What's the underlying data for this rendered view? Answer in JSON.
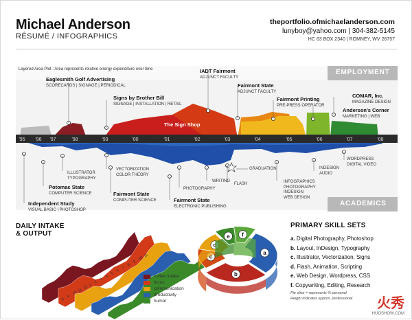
{
  "header": {
    "name": "Michael Anderson",
    "subtitle": "RÉSUMÉ / INFOGRAPHICS",
    "url": "theportfolio.ofmichaelanderson.com",
    "email_phone": "lunyboy@yahoo.com | 304-382-5145",
    "address": "HC 63 BOX 2340 | ROMNEY, WV 26757"
  },
  "timeline": {
    "note": "Layered Area Plot : Area represents relative energy expenditure over time",
    "employment_label": "EMPLOYMENT",
    "academics_label": "ACADEMICS",
    "years": [
      "'95",
      "'96",
      "'97",
      "'98",
      "'99",
      "'00",
      "'01",
      "'02",
      "'03",
      "'04",
      "'05",
      "'06",
      "'07",
      "'08"
    ],
    "center_label": "The Sign Shop",
    "employment": [
      {
        "title": "Eaglesmith Golf Advertising",
        "sub": "SCORECARDS | SIGNAGE | PERIODICAL"
      },
      {
        "title": "Signs by Brother Bill",
        "sub": "SIGNAGE | INSTALLATION | RETAIL"
      },
      {
        "title": "IADT Fairmont",
        "sub": "ADJUNCT FACULTY"
      },
      {
        "title": "Fairmont State",
        "sub": "ADJUNCT FACULTY"
      },
      {
        "title": "Fairmont Printing",
        "sub": "PRE-PRESS OPERATOR"
      },
      {
        "title": "COMAR, Inc.",
        "sub": "MAGAZINE DESIGN"
      },
      {
        "title": "Anderson's Corner",
        "sub": "MARKETING | WEB"
      }
    ],
    "academics": [
      {
        "title": "",
        "sub": "ILLUSTRATOR\nTYPOGRAPHY"
      },
      {
        "title": "Potomac State",
        "sub": "COMPUTER SCIENCE"
      },
      {
        "title": "Independent Study",
        "sub": "VISUAL BASIC | PHOTOSHOP"
      },
      {
        "title": "",
        "sub": "VECTORIZATION\nCOLOR THEORY"
      },
      {
        "title": "Fairmont State",
        "sub": "COMPUTER SCIENCE"
      },
      {
        "title": "Fairmont State",
        "sub": "ELECTRONIC PUBLISHING"
      },
      {
        "title": "",
        "sub": "PHOTOGRAPHY"
      },
      {
        "title": "",
        "sub": "WRITING"
      },
      {
        "title": "",
        "sub": "FLASH"
      },
      {
        "title": "",
        "sub": "GRADUATION"
      },
      {
        "title": "",
        "sub": "INFOGRAPHICS\nPHOTOGRAPHY\nINDESIGN\nWEB DESIGN"
      },
      {
        "title": "",
        "sub": "INDESIGN\nAUDIO"
      },
      {
        "title": "",
        "sub": "WORDPRESS\nDIGITAL VIDEO"
      }
    ]
  },
  "intake": {
    "title_line1": "DAILY INTAKE",
    "title_line2": "& OUTPUT",
    "legend": [
      {
        "label": "coffee intake",
        "color": "#7a1620"
      },
      {
        "label": "focus",
        "color": "#d23a18"
      },
      {
        "label": "communication",
        "color": "#e8a10f"
      },
      {
        "label": "productivity",
        "color": "#2a5fb0"
      },
      {
        "label": "humor",
        "color": "#3a8a2a"
      }
    ],
    "hours": [
      "8",
      "9",
      "10",
      "11",
      "12",
      "1",
      "2",
      "3",
      "4",
      "5",
      "6",
      "7",
      "8",
      "9",
      "10",
      "11"
    ]
  },
  "skills": {
    "title": "PRIMARY SKILL SETS",
    "items": [
      {
        "letter": "a.",
        "text": "Digital Photography, Photoshop"
      },
      {
        "letter": "b.",
        "text": "Layout, InDesign, Typography"
      },
      {
        "letter": "c.",
        "text": "Illustrator, Vectorization, Signs"
      },
      {
        "letter": "d.",
        "text": "Flash, Animation, Scripting"
      },
      {
        "letter": "e.",
        "text": "Web Design, Wordpress, CSS"
      },
      {
        "letter": "f.",
        "text": "Copywriting, Editing, Research"
      }
    ],
    "note_line1": "Pie slice = represents % personal",
    "note_line2": "Height indicates approx. professional",
    "pie_labels": [
      "a",
      "b",
      "c",
      "d",
      "e",
      "f"
    ],
    "pie_colors": [
      "#2a5fb0",
      "#b8281e",
      "#d24a14",
      "#e8a10f",
      "#3a8a2a",
      "#5aa83a"
    ]
  },
  "watermark": {
    "big": "火秀",
    "small": "HUOSHOW.COM"
  }
}
